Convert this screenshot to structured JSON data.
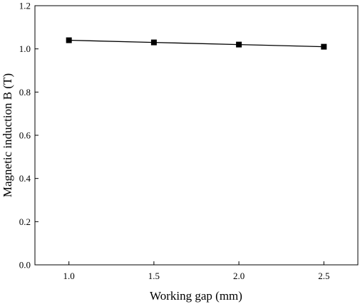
{
  "chart_data": {
    "type": "line",
    "title": "",
    "xlabel": "Working gap (mm)",
    "ylabel": "Magnetic induction B (T)",
    "xlim": [
      0.8,
      2.7
    ],
    "ylim": [
      0.0,
      1.2
    ],
    "xticks": [
      "1.0",
      "1.5",
      "2.0",
      "2.5"
    ],
    "yticks": [
      "0.0",
      "0.2",
      "0.4",
      "0.6",
      "0.8",
      "1.0",
      "1.2"
    ],
    "series": [
      {
        "marker": "square",
        "color": "#000000",
        "x": [
          1.0,
          1.5,
          2.0,
          2.5
        ],
        "y": [
          1.04,
          1.03,
          1.02,
          1.01
        ]
      }
    ],
    "grid": false,
    "legend": "none"
  }
}
